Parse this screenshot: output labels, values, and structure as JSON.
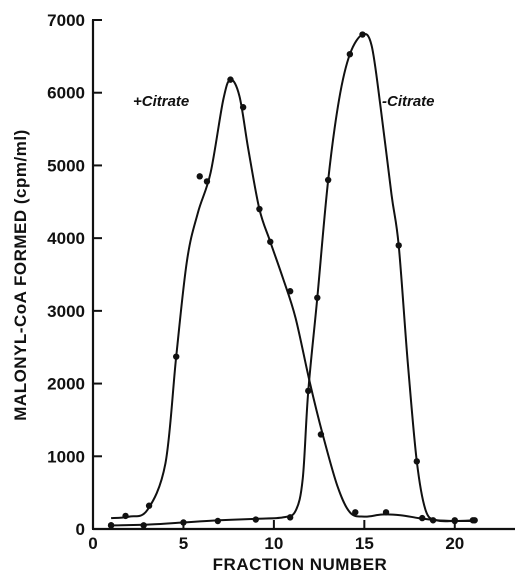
{
  "chart_data": {
    "type": "line",
    "title": "",
    "xlabel": "FRACTION NUMBER",
    "ylabel": "MALONYL-CoA FORMED (cpm/ml)",
    "xlim": [
      0,
      22.5
    ],
    "ylim": [
      0,
      7000
    ],
    "xticks": [
      0,
      5,
      10,
      15,
      20
    ],
    "yticks": [
      0,
      1000,
      2000,
      3000,
      4000,
      5000,
      6000,
      7000
    ],
    "series": [
      {
        "name": "+Citrate",
        "points": [
          [
            1,
            50
          ],
          [
            1.8,
            180
          ],
          [
            3.1,
            320
          ],
          [
            4.6,
            2370
          ],
          [
            5.9,
            4850
          ],
          [
            6.3,
            4780
          ],
          [
            7.6,
            6180
          ],
          [
            8.3,
            5800
          ],
          [
            9.2,
            4400
          ],
          [
            9.8,
            3950
          ],
          [
            10.9,
            3270
          ],
          [
            12.6,
            1300
          ],
          [
            14.5,
            230
          ],
          [
            16.2,
            230
          ],
          [
            18.2,
            150
          ],
          [
            20,
            120
          ],
          [
            21,
            120
          ]
        ],
        "curve": [
          [
            1,
            150
          ],
          [
            2,
            170
          ],
          [
            3,
            260
          ],
          [
            4,
            900
          ],
          [
            4.6,
            2370
          ],
          [
            5.2,
            3700
          ],
          [
            5.8,
            4350
          ],
          [
            6.5,
            4900
          ],
          [
            7.2,
            5900
          ],
          [
            7.6,
            6180
          ],
          [
            8.1,
            5950
          ],
          [
            8.6,
            5200
          ],
          [
            9.2,
            4400
          ],
          [
            9.8,
            3950
          ],
          [
            10.5,
            3450
          ],
          [
            11.2,
            2900
          ],
          [
            12,
            2000
          ],
          [
            12.7,
            1300
          ],
          [
            13.5,
            600
          ],
          [
            14.2,
            230
          ],
          [
            15,
            170
          ],
          [
            16,
            200
          ],
          [
            17,
            190
          ],
          [
            18,
            150
          ],
          [
            19,
            120
          ],
          [
            20,
            110
          ],
          [
            21,
            110
          ]
        ]
      },
      {
        "name": "-Citrate",
        "points": [
          [
            1,
            50
          ],
          [
            2.8,
            50
          ],
          [
            5,
            90
          ],
          [
            6.9,
            110
          ],
          [
            9,
            130
          ],
          [
            10.9,
            160
          ],
          [
            11.9,
            1900
          ],
          [
            12.4,
            3180
          ],
          [
            13,
            4800
          ],
          [
            14.2,
            6530
          ],
          [
            14.9,
            6800
          ],
          [
            16.9,
            3900
          ],
          [
            17.9,
            930
          ],
          [
            18.8,
            120
          ],
          [
            20,
            110
          ],
          [
            21.1,
            120
          ]
        ],
        "curve": [
          [
            1,
            50
          ],
          [
            3,
            60
          ],
          [
            5,
            90
          ],
          [
            7,
            120
          ],
          [
            9,
            140
          ],
          [
            10.5,
            160
          ],
          [
            11.2,
            250
          ],
          [
            11.6,
            700
          ],
          [
            11.9,
            1900
          ],
          [
            12.4,
            3180
          ],
          [
            13,
            4800
          ],
          [
            13.6,
            5900
          ],
          [
            14.2,
            6530
          ],
          [
            14.9,
            6800
          ],
          [
            15.4,
            6650
          ],
          [
            15.9,
            5800
          ],
          [
            16.5,
            4600
          ],
          [
            16.9,
            3900
          ],
          [
            17.4,
            2300
          ],
          [
            17.9,
            930
          ],
          [
            18.4,
            250
          ],
          [
            19,
            120
          ],
          [
            20,
            110
          ],
          [
            21.1,
            120
          ]
        ]
      }
    ]
  }
}
